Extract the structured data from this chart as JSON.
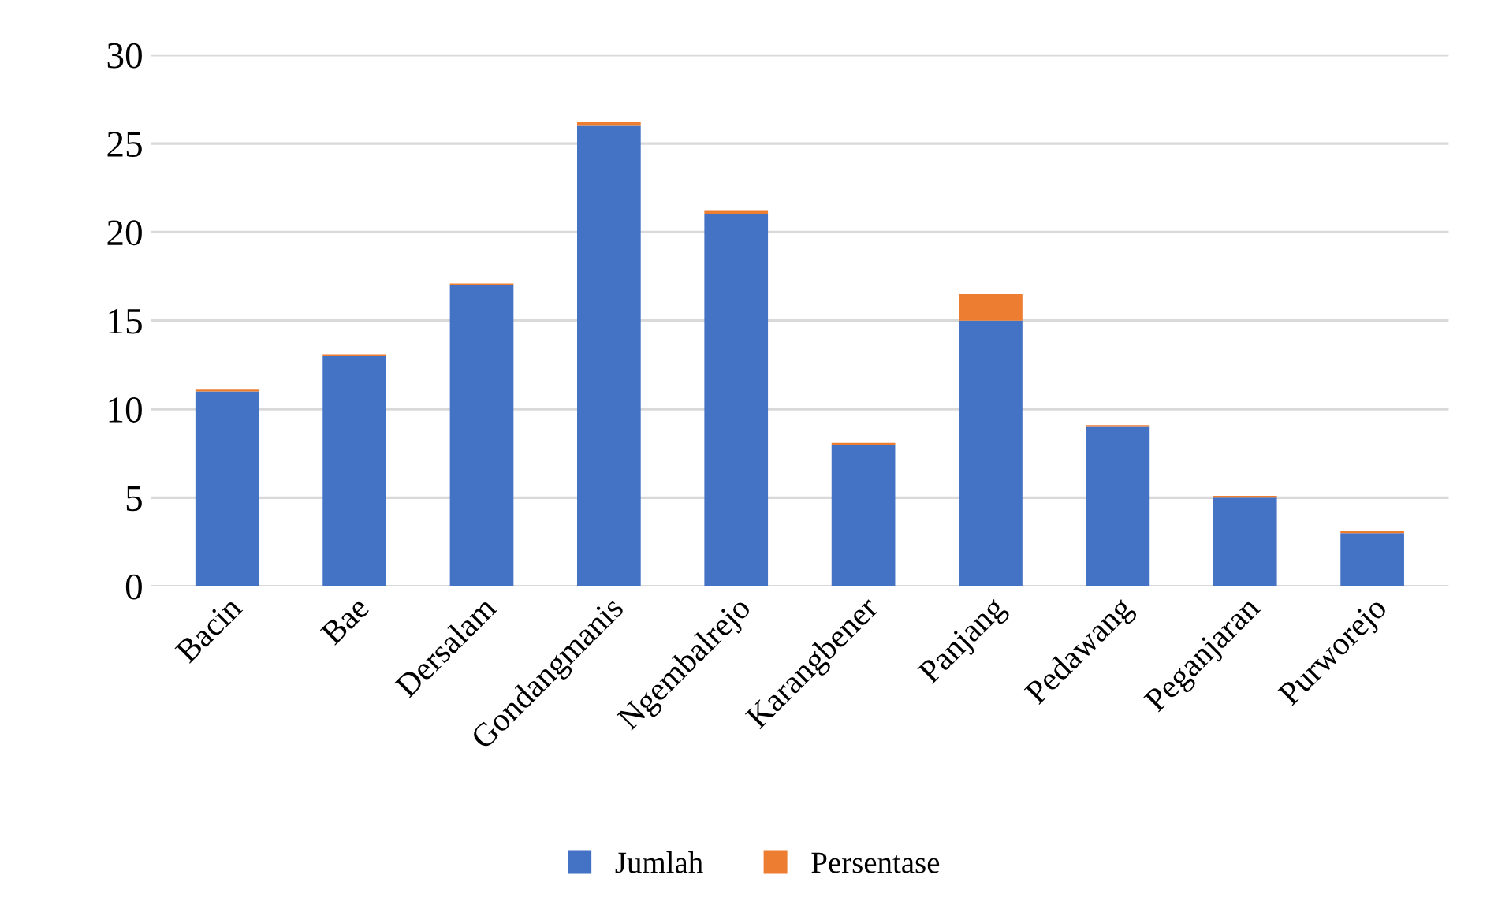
{
  "chart_data": {
    "type": "bar",
    "stacked": true,
    "categories": [
      "Bacin",
      "Bae",
      "Dersalam",
      "Gondangmanis",
      "Ngembalrejo",
      "Karangbener",
      "Panjang",
      "Pedawang",
      "Peganjaran",
      "Purworejo"
    ],
    "series": [
      {
        "name": "Jumlah",
        "color": "#4472c4",
        "values": [
          11,
          13,
          17,
          26,
          21,
          8,
          15,
          9,
          5,
          3
        ]
      },
      {
        "name": "Persentase",
        "color": "#ed7d31",
        "values": [
          0.1,
          0.1,
          0.1,
          0.2,
          0.2,
          0.1,
          1.5,
          0.1,
          0.1,
          0.1
        ]
      }
    ],
    "ylim": [
      0,
      30
    ],
    "yticks": [
      0,
      5,
      10,
      15,
      20,
      25,
      30
    ],
    "grid": "y",
    "legend": "bottom"
  }
}
